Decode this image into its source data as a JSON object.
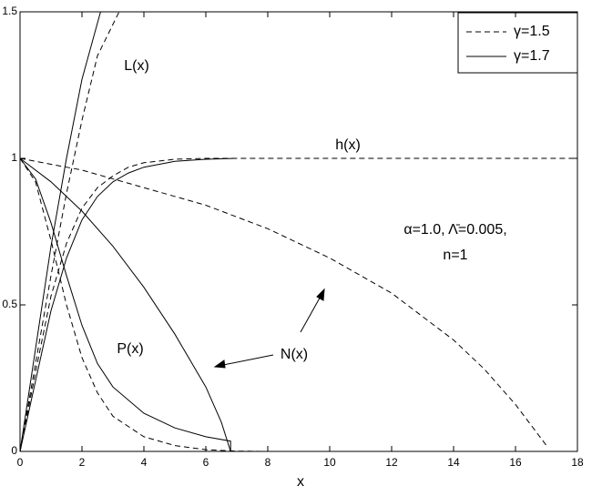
{
  "chart_data": {
    "type": "line",
    "xlabel": "x",
    "xlim": [
      0,
      18
    ],
    "xticks": [
      0,
      2,
      4,
      6,
      8,
      10,
      12,
      14,
      16,
      18
    ],
    "ylim": [
      0,
      1.5
    ],
    "yticks": [
      0,
      0.5,
      1,
      1.5
    ],
    "grid": false,
    "legend": "upper right",
    "annotations": [
      "L(x)",
      "h(x)",
      "α=1.0, Λ̄=0.005,",
      "n=1",
      "P(x)",
      "N(x)"
    ],
    "series": [
      {
        "name": "γ=1.5",
        "color": "#000000",
        "style": "dashed",
        "curves": [
          {
            "x": [
              0,
              0.5,
              1,
              1.5,
              2,
              2.5,
              3,
              3.5,
              4,
              5,
              6,
              7,
              18
            ],
            "values": [
              0,
              0.27,
              0.53,
              0.71,
              0.83,
              0.9,
              0.94,
              0.97,
              0.985,
              0.997,
              1,
              1,
              1
            ]
          },
          {
            "x": [
              0,
              0.5,
              1,
              1.5,
              2,
              2.5,
              3.2
            ],
            "values": [
              0,
              0.3,
              0.6,
              0.88,
              1.13,
              1.35,
              1.5
            ]
          },
          {
            "x": [
              0,
              0.5,
              1,
              1.5,
              2,
              2.5,
              3,
              4,
              5,
              6,
              7,
              8,
              9
            ],
            "values": [
              1,
              0.92,
              0.72,
              0.5,
              0.32,
              0.2,
              0.12,
              0.05,
              0.02,
              0.006,
              0.001,
              0,
              0
            ]
          },
          {
            "x": [
              0,
              2,
              4,
              6,
              8,
              10,
              12,
              14,
              15,
              16,
              16.5,
              17
            ],
            "values": [
              1,
              0.96,
              0.9,
              0.84,
              0.76,
              0.66,
              0.54,
              0.38,
              0.28,
              0.16,
              0.09,
              0.02
            ]
          }
        ]
      },
      {
        "name": "γ=1.7",
        "color": "#000000",
        "style": "solid",
        "curves": [
          {
            "x": [
              0,
              0.5,
              1,
              1.5,
              2,
              2.5,
              3,
              3.5,
              4,
              5,
              6,
              7
            ],
            "values": [
              0,
              0.24,
              0.48,
              0.66,
              0.79,
              0.87,
              0.92,
              0.95,
              0.97,
              0.99,
              0.997,
              1
            ]
          },
          {
            "x": [
              0,
              0.5,
              1,
              1.5,
              2,
              2.6
            ],
            "values": [
              0,
              0.35,
              0.7,
              1.0,
              1.27,
              1.5
            ]
          },
          {
            "x": [
              0,
              0.5,
              1,
              1.5,
              2,
              2.5,
              3,
              4,
              5,
              6,
              6.8,
              6.8
            ],
            "values": [
              1,
              0.93,
              0.78,
              0.6,
              0.43,
              0.3,
              0.22,
              0.13,
              0.08,
              0.05,
              0.035,
              0
            ]
          },
          {
            "x": [
              0,
              1,
              2,
              3,
              4,
              5,
              6,
              6.5,
              6.8
            ],
            "values": [
              1,
              0.92,
              0.82,
              0.7,
              0.56,
              0.4,
              0.22,
              0.1,
              0
            ]
          }
        ]
      }
    ]
  }
}
